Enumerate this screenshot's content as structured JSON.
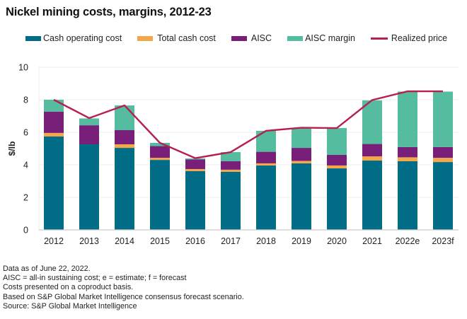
{
  "title": "Nickel mining costs, margins, 2012-23",
  "colors": {
    "cash_operating_cost": "#006c86",
    "total_cash_cost": "#f2a74b",
    "aisc": "#782079",
    "aisc_margin": "#55bc9f",
    "realized_price": "#b5204f",
    "grid": "#ececec",
    "axis": "#cccccc"
  },
  "legend": [
    {
      "key": "cash_operating_cost",
      "label": "Cash operating cost",
      "kind": "bar"
    },
    {
      "key": "total_cash_cost",
      "label": "Total cash cost",
      "kind": "bar"
    },
    {
      "key": "aisc",
      "label": "AISC",
      "kind": "bar"
    },
    {
      "key": "aisc_margin",
      "label": "AISC margin",
      "kind": "bar"
    },
    {
      "key": "realized_price",
      "label": "Realized price",
      "kind": "line"
    }
  ],
  "notes": [
    "Data as of June 22, 2022.",
    "AISC = all-in sustaining cost; e = estimate; f = forecast",
    "Costs presented on a coproduct basis.",
    "Based on S&P Global Market Intelligence consensus forecast scenario.",
    "Source: S&P Global Market Intelligence"
  ],
  "chart_data": {
    "type": "bar",
    "subtype": "stacked bar with line overlay",
    "title": "Nickel mining costs, margins, 2012-23",
    "xlabel": "",
    "ylabel": "$/lb",
    "ylim": [
      0,
      10
    ],
    "yticks": [
      0,
      2,
      4,
      6,
      8,
      10
    ],
    "grid": true,
    "legend_position": "top",
    "categories": [
      "2012",
      "2013",
      "2014",
      "2015",
      "2016",
      "2017",
      "2018",
      "2019",
      "2020",
      "2021",
      "2022e",
      "2023f"
    ],
    "cumulative_levels_note": "Each series value is the cost level ($/lb); stacks are drawn as increments between levels",
    "series": [
      {
        "name": "Cash operating cost",
        "key": "cash_operating_cost",
        "type": "bar",
        "values": [
          5.74,
          5.26,
          5.04,
          4.3,
          3.61,
          3.57,
          3.96,
          4.09,
          3.78,
          4.26,
          4.22,
          4.17
        ]
      },
      {
        "name": "Total cash cost",
        "key": "total_cash_cost",
        "type": "bar",
        "values": [
          5.96,
          5.26,
          5.26,
          4.43,
          3.74,
          3.7,
          4.09,
          4.24,
          3.96,
          4.52,
          4.46,
          4.43
        ]
      },
      {
        "name": "AISC",
        "key": "aisc",
        "type": "bar",
        "values": [
          7.26,
          6.43,
          6.13,
          5.15,
          4.33,
          4.22,
          4.8,
          5.04,
          4.61,
          5.28,
          5.09,
          5.09
        ]
      },
      {
        "name": "AISC margin",
        "key": "aisc_margin",
        "type": "bar",
        "note": "top of stack = AISC + margin",
        "values": [
          8.0,
          6.85,
          7.65,
          5.35,
          4.39,
          4.78,
          6.09,
          6.26,
          6.26,
          7.96,
          8.5,
          8.5
        ]
      },
      {
        "name": "Realized price",
        "key": "realized_price",
        "type": "line",
        "values": [
          8.0,
          6.87,
          7.65,
          5.35,
          4.41,
          4.78,
          6.09,
          6.28,
          6.26,
          7.98,
          8.52,
          8.52
        ]
      }
    ]
  }
}
